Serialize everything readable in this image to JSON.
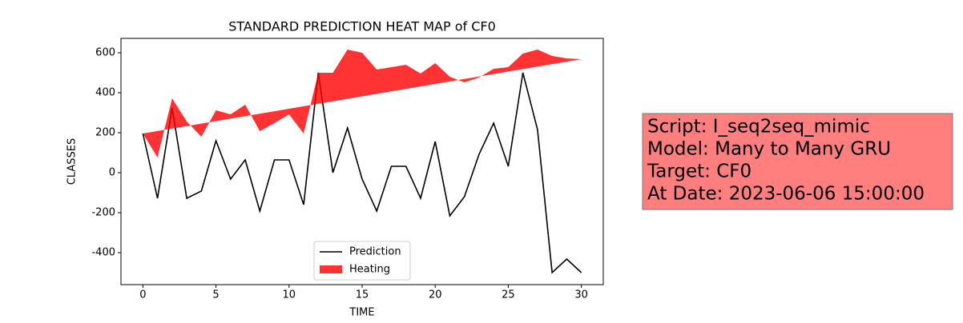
{
  "chart_data": {
    "type": "line",
    "title": "STANDARD PREDICTION HEAT MAP of CF0",
    "xlabel": "TIME",
    "ylabel": "CLASSES",
    "x": [
      0,
      1,
      2,
      3,
      4,
      5,
      6,
      7,
      8,
      9,
      10,
      11,
      12,
      13,
      14,
      15,
      16,
      17,
      18,
      19,
      20,
      21,
      22,
      23,
      24,
      25,
      26,
      27,
      28,
      29,
      30
    ],
    "series": [
      {
        "name": "Prediction",
        "color": "#000000",
        "kind": "line",
        "values": [
          196,
          -128,
          324,
          -128,
          -92,
          160,
          -32,
          64,
          -192,
          64,
          64,
          -160,
          500,
          0,
          224,
          -32,
          -192,
          32,
          32,
          -128,
          156,
          -216,
          -120,
          92,
          248,
          32,
          500,
          216,
          -500,
          -432,
          -500
        ]
      },
      {
        "name": "Heating",
        "color": "#ff0000",
        "kind": "fill",
        "values": [
          196,
          76,
          372,
          256,
          180,
          312,
          292,
          340,
          208,
          248,
          292,
          196,
          500,
          500,
          616,
          600,
          516,
          528,
          540,
          496,
          548,
          480,
          452,
          476,
          520,
          528,
          596,
          616,
          584,
          572,
          568
        ],
        "base": [
          196,
          208.4,
          220.8,
          233.2,
          245.6,
          258,
          270.4,
          282.8,
          295.2,
          307.6,
          320,
          332.4,
          344.8,
          357.2,
          369.6,
          382,
          394.4,
          406.8,
          419.2,
          431.6,
          444,
          456.4,
          468.8,
          481.2,
          493.6,
          506,
          518.4,
          530.8,
          543.2,
          555.6,
          568
        ]
      }
    ],
    "xlim": [
      -1.5,
      31.5
    ],
    "ylim": [
      -560,
      672
    ],
    "xticks": [
      0,
      5,
      10,
      15,
      20,
      25,
      30
    ],
    "yticks": [
      -400,
      -200,
      0,
      200,
      400,
      600
    ],
    "legend": "lower center",
    "annotation": {
      "lines": [
        "Script: I_seq2seq_mimic",
        "Model: Many to Many GRU",
        "Target: CF0",
        "At Date: 2023-06-06 15:00:00"
      ],
      "color": "#ff7f7f"
    }
  }
}
